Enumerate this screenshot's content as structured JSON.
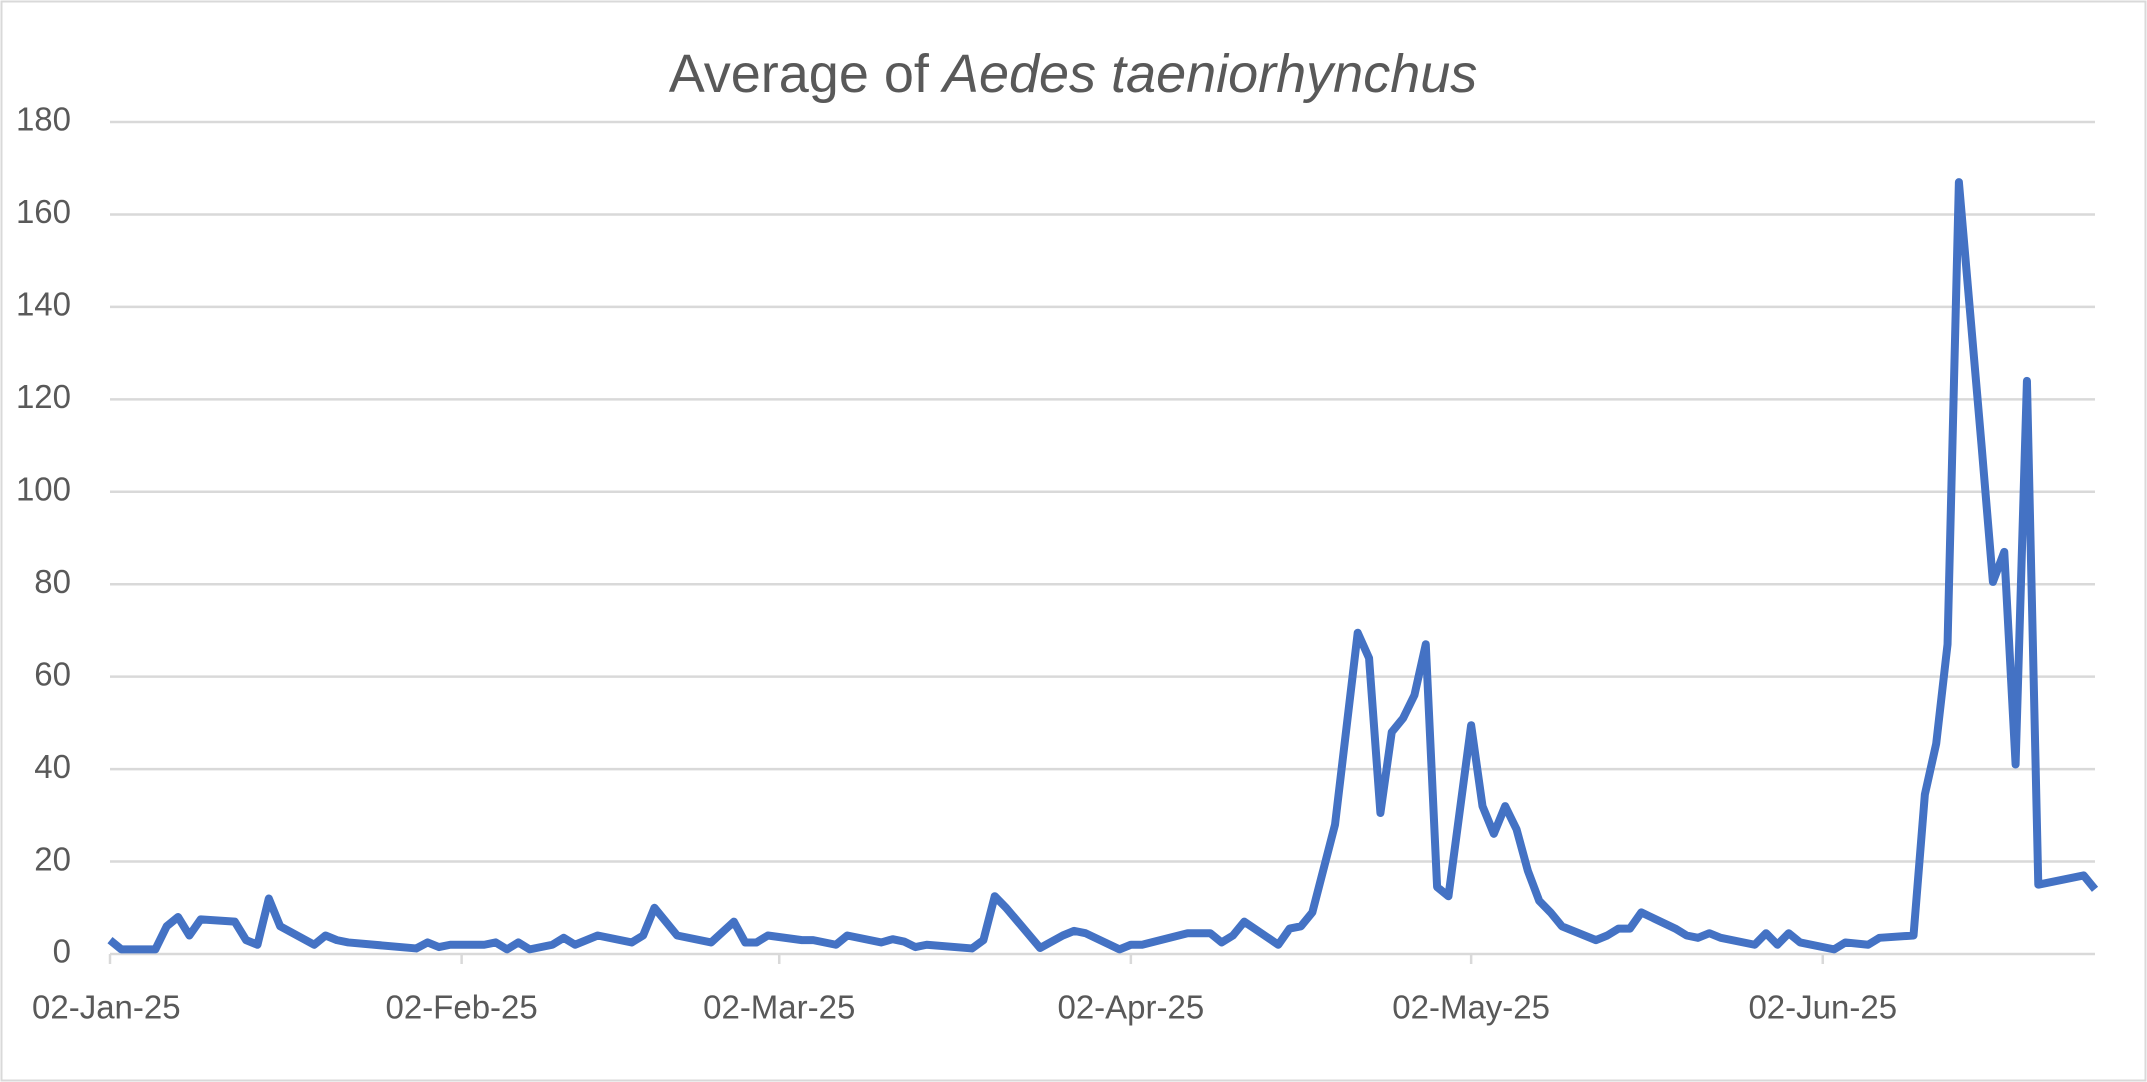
{
  "chart_data": {
    "type": "line",
    "title": [
      "Average of",
      "Aedes taeniorhynchus"
    ],
    "x": [
      "2025-01-02",
      "2025-01-03",
      "2025-01-06",
      "2025-01-07",
      "2025-01-08",
      "2025-01-09",
      "2025-01-10",
      "2025-01-13",
      "2025-01-14",
      "2025-01-15",
      "2025-01-16",
      "2025-01-17",
      "2025-01-20",
      "2025-01-21",
      "2025-01-22",
      "2025-01-23",
      "2025-01-29",
      "2025-01-30",
      "2025-01-31",
      "2025-02-01",
      "2025-02-04",
      "2025-02-05",
      "2025-02-06",
      "2025-02-07",
      "2025-02-08",
      "2025-02-10",
      "2025-02-11",
      "2025-02-12",
      "2025-02-14",
      "2025-02-17",
      "2025-02-18",
      "2025-02-19",
      "2025-02-21",
      "2025-02-24",
      "2025-02-26",
      "2025-02-27",
      "2025-02-28",
      "2025-03-01",
      "2025-03-04",
      "2025-03-05",
      "2025-03-07",
      "2025-03-08",
      "2025-03-11",
      "2025-03-12",
      "2025-03-13",
      "2025-03-14",
      "2025-03-15",
      "2025-03-19",
      "2025-03-20",
      "2025-03-21",
      "2025-03-22",
      "2025-03-25",
      "2025-03-27",
      "2025-03-28",
      "2025-03-29",
      "2025-04-01",
      "2025-04-02",
      "2025-04-03",
      "2025-04-07",
      "2025-04-09",
      "2025-04-10",
      "2025-04-11",
      "2025-04-12",
      "2025-04-15",
      "2025-04-16",
      "2025-04-17",
      "2025-04-18",
      "2025-04-20",
      "2025-04-22",
      "2025-04-23",
      "2025-04-24",
      "2025-04-25",
      "2025-04-26",
      "2025-04-27",
      "2025-04-28",
      "2025-04-29",
      "2025-04-30",
      "2025-05-02",
      "2025-05-03",
      "2025-05-04",
      "2025-05-05",
      "2025-05-06",
      "2025-05-07",
      "2025-05-08",
      "2025-05-09",
      "2025-05-10",
      "2025-05-13",
      "2025-05-14",
      "2025-05-15",
      "2025-05-16",
      "2025-05-17",
      "2025-05-20",
      "2025-05-21",
      "2025-05-22",
      "2025-05-23",
      "2025-05-24",
      "2025-05-27",
      "2025-05-28",
      "2025-05-29",
      "2025-05-30",
      "2025-05-31",
      "2025-06-03",
      "2025-06-04",
      "2025-06-06",
      "2025-06-07",
      "2025-06-10",
      "2025-06-11",
      "2025-06-12",
      "2025-06-13",
      "2025-06-14",
      "2025-06-16",
      "2025-06-17",
      "2025-06-18",
      "2025-06-19",
      "2025-06-20",
      "2025-06-21",
      "2025-06-25",
      "2025-06-26"
    ],
    "series": [
      {
        "name": "Average of Aedes taeniorhynchus",
        "color": "#4472c4",
        "values": [
          3,
          1,
          1,
          6,
          8,
          4,
          7.5,
          7,
          3,
          2,
          12,
          6,
          2,
          4,
          3,
          2.5,
          1.2,
          2.5,
          1.5,
          2,
          2,
          2.5,
          1,
          2.5,
          1,
          2,
          3.5,
          2,
          4,
          2.5,
          4,
          10,
          4,
          2.5,
          7,
          2.5,
          2.5,
          4,
          3,
          3,
          2,
          4,
          2.5,
          3.2,
          2.7,
          1.5,
          2,
          1.2,
          3,
          12.5,
          10,
          1.3,
          4,
          5,
          4.5,
          1,
          2,
          2,
          4.5,
          4.5,
          2.5,
          4,
          7,
          2,
          5.5,
          6,
          9,
          28,
          69.5,
          64,
          30.5,
          48,
          51,
          56,
          67,
          14.5,
          12.5,
          49.5,
          32,
          26,
          32,
          27,
          18,
          11.5,
          9,
          6,
          3,
          4,
          5.5,
          5.5,
          9,
          5.5,
          4,
          3.5,
          4.5,
          3.5,
          2,
          4.5,
          2,
          4.5,
          2.5,
          1,
          2.5,
          2,
          3.5,
          4,
          34.5,
          45.5,
          67,
          167,
          110,
          80.5,
          87,
          41,
          124,
          15,
          17,
          14
        ]
      }
    ],
    "xlim": [
      "2025-01-02",
      "2025-06-26"
    ],
    "xticks": [
      {
        "value": "2025-01-02",
        "label": "02-Jan-25"
      },
      {
        "value": "2025-02-02",
        "label": "02-Feb-25"
      },
      {
        "value": "2025-03-02",
        "label": "02-Mar-25"
      },
      {
        "value": "2025-04-02",
        "label": "02-Apr-25"
      },
      {
        "value": "2025-05-02",
        "label": "02-May-25"
      },
      {
        "value": "2025-06-02",
        "label": "02-Jun-25"
      }
    ],
    "ylim": [
      0,
      180
    ],
    "yticks": [
      0,
      20,
      40,
      60,
      80,
      100,
      120,
      140,
      160,
      180
    ],
    "grid": true
  }
}
